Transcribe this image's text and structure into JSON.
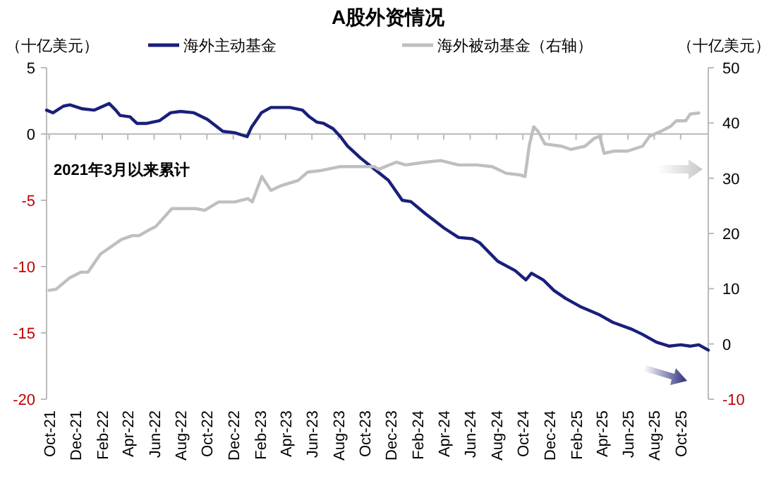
{
  "chart_data": {
    "type": "line",
    "title": "A股外资情况",
    "ylabel": "（十亿美元）",
    "y2label": "（十亿美元）",
    "annotations": [
      "2021年3月以来累计"
    ],
    "legend": "top",
    "xlim": [
      "2021-09-25",
      "2025-12-04"
    ],
    "xticks": [
      {
        "value": "2021-10",
        "label": "Oct-21"
      },
      {
        "value": "2021-12",
        "label": "Dec-21"
      },
      {
        "value": "2022-02",
        "label": "Feb-22"
      },
      {
        "value": "2022-04",
        "label": "Apr-22"
      },
      {
        "value": "2022-06",
        "label": "Jun-22"
      },
      {
        "value": "2022-08",
        "label": "Aug-22"
      },
      {
        "value": "2022-10",
        "label": "Oct-22"
      },
      {
        "value": "2022-12",
        "label": "Dec-22"
      },
      {
        "value": "2023-02",
        "label": "Feb-23"
      },
      {
        "value": "2023-04",
        "label": "Apr-23"
      },
      {
        "value": "2023-06",
        "label": "Jun-23"
      },
      {
        "value": "2023-08",
        "label": "Aug-23"
      },
      {
        "value": "2023-10",
        "label": "Oct-23"
      },
      {
        "value": "2023-12",
        "label": "Dec-23"
      },
      {
        "value": "2024-02",
        "label": "Feb-24"
      },
      {
        "value": "2024-04",
        "label": "Apr-24"
      },
      {
        "value": "2024-06",
        "label": "Jun-24"
      },
      {
        "value": "2024-08",
        "label": "Aug-24"
      },
      {
        "value": "2024-10",
        "label": "Oct-24"
      },
      {
        "value": "2024-12",
        "label": "Dec-24"
      },
      {
        "value": "2025-02",
        "label": "Feb-25"
      },
      {
        "value": "2025-04",
        "label": "Apr-25"
      },
      {
        "value": "2025-06",
        "label": "Jun-25"
      },
      {
        "value": "2025-08",
        "label": "Aug-25"
      },
      {
        "value": "2025-10",
        "label": "Oct-25"
      }
    ],
    "ylim": [
      -20,
      5
    ],
    "yticks": [
      -20,
      -15,
      -10,
      -5,
      0,
      5
    ],
    "y2lim": [
      -10,
      50
    ],
    "y2ticks": [
      -10,
      0,
      10,
      20,
      30,
      40,
      50
    ],
    "series": [
      {
        "name": "海外主动基金",
        "color": "#1a1f7a",
        "x": [
          "2021-09-25",
          "2021-10-10",
          "2021-11-03",
          "2021-11-18",
          "2021-12-17",
          "2022-01-13",
          "2022-02-17",
          "2022-03-04",
          "2022-03-14",
          "2022-04-06",
          "2022-04-22",
          "2022-05-15",
          "2022-06-13",
          "2022-07-09",
          "2022-08-01",
          "2022-09-01",
          "2022-10-02",
          "2022-11-07",
          "2022-12-04",
          "2023-01-02",
          "2023-01-12",
          "2023-02-04",
          "2023-02-26",
          "2023-04-11",
          "2023-05-10",
          "2023-05-26",
          "2023-06-12",
          "2023-06-28",
          "2023-07-20",
          "2023-08-06",
          "2023-08-22",
          "2023-09-21",
          "2023-11-02",
          "2023-11-25",
          "2023-12-27",
          "2024-01-16",
          "2024-02-18",
          "2024-04-02",
          "2024-05-05",
          "2024-06-06",
          "2024-06-23",
          "2024-08-04",
          "2024-09-13",
          "2024-10-08",
          "2024-10-21",
          "2024-11-17",
          "2024-12-12",
          "2025-01-08",
          "2025-02-10",
          "2025-03-25",
          "2025-04-27",
          "2025-06-08",
          "2025-07-04",
          "2025-08-06",
          "2025-09-05",
          "2025-10-01",
          "2025-10-23",
          "2025-11-12",
          "2025-12-04"
        ],
        "values": [
          1.8,
          1.6,
          2.1,
          2.2,
          1.9,
          1.8,
          2.3,
          1.8,
          1.4,
          1.3,
          0.8,
          0.8,
          1.0,
          1.6,
          1.7,
          1.6,
          1.1,
          0.2,
          0.1,
          -0.2,
          0.5,
          1.6,
          2.0,
          2.0,
          1.8,
          1.3,
          0.9,
          0.8,
          0.4,
          -0.2,
          -0.9,
          -1.8,
          -2.9,
          -3.5,
          -5.0,
          -5.1,
          -6.0,
          -7.1,
          -7.8,
          -7.9,
          -8.2,
          -9.6,
          -10.3,
          -11.0,
          -10.5,
          -11.0,
          -11.8,
          -12.4,
          -13.0,
          -13.6,
          -14.2,
          -14.7,
          -15.1,
          -15.7,
          -16.0,
          -15.9,
          -16.0,
          -15.9,
          -16.3
        ]
      },
      {
        "name": "海外被动基金（右轴）",
        "color": "#bfbfbf",
        "axis": "y2",
        "x": [
          "2021-10-01",
          "2021-10-17",
          "2021-11-18",
          "2021-12-14",
          "2021-12-30",
          "2022-01-28",
          "2022-02-12",
          "2022-03-17",
          "2022-04-11",
          "2022-04-27",
          "2022-05-19",
          "2022-06-04",
          "2022-07-12",
          "2022-09-04",
          "2022-09-26",
          "2022-10-28",
          "2022-12-04",
          "2023-01-04",
          "2023-01-14",
          "2023-02-05",
          "2023-02-26",
          "2023-03-20",
          "2023-04-30",
          "2023-05-22",
          "2023-06-23",
          "2023-08-06",
          "2023-09-21",
          "2023-10-23",
          "2023-11-02",
          "2023-12-13",
          "2024-01-04",
          "2024-02-18",
          "2024-03-25",
          "2024-05-05",
          "2024-06-16",
          "2024-07-22",
          "2024-08-23",
          "2024-09-24",
          "2024-10-06",
          "2024-10-16",
          "2024-10-26",
          "2024-11-05",
          "2024-11-21",
          "2024-12-29",
          "2025-01-20",
          "2025-02-22",
          "2025-03-15",
          "2025-03-28",
          "2025-04-07",
          "2025-04-29",
          "2025-05-31",
          "2025-07-05",
          "2025-07-21",
          "2025-08-17",
          "2025-09-08",
          "2025-09-21",
          "2025-10-13",
          "2025-10-23",
          "2025-11-12"
        ],
        "values": [
          9.7,
          9.9,
          12.0,
          13.0,
          13.0,
          16.3,
          17.1,
          18.9,
          19.6,
          19.6,
          20.6,
          21.2,
          24.5,
          24.5,
          24.2,
          25.7,
          25.7,
          26.3,
          25.7,
          30.3,
          27.8,
          28.6,
          29.6,
          31.1,
          31.4,
          32.1,
          32.1,
          32.1,
          31.6,
          32.9,
          32.4,
          32.9,
          33.2,
          32.4,
          32.4,
          32.1,
          30.9,
          30.6,
          30.3,
          36.0,
          39.3,
          38.5,
          36.2,
          35.8,
          35.2,
          35.8,
          37.2,
          37.6,
          34.5,
          34.9,
          34.9,
          35.8,
          37.6,
          38.5,
          39.4,
          40.4,
          40.4,
          41.6,
          41.8
        ]
      }
    ]
  }
}
